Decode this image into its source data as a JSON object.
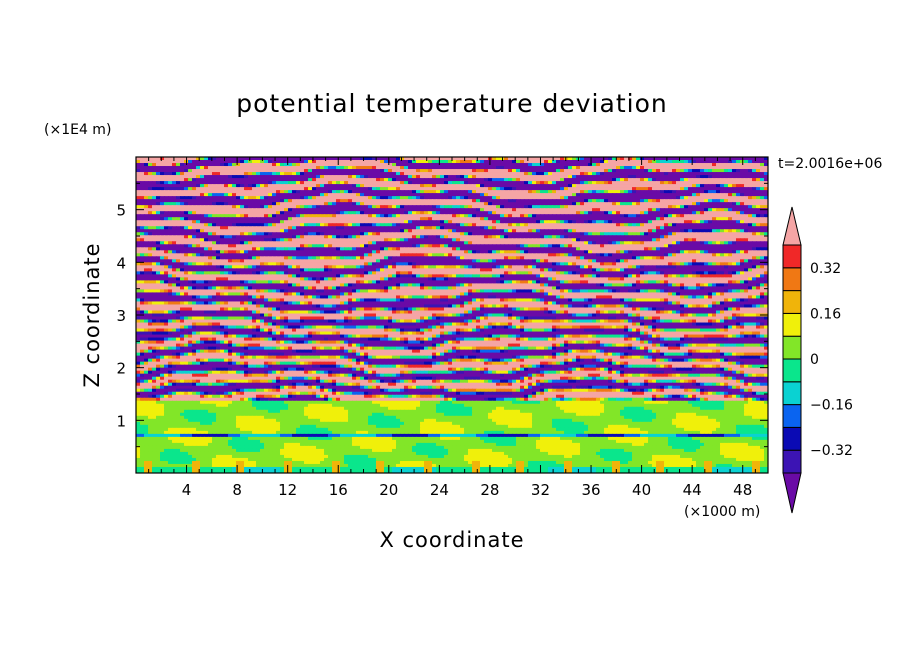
{
  "chart_data": {
    "type": "heatmap",
    "title": "potential temperature deviation",
    "xlabel": "X coordinate",
    "ylabel": "Z coordinate",
    "x_unit": "(×1000 m)",
    "y_unit": "(×1E4 m)",
    "time_label": "t=2.0016e+06",
    "xlim": [
      0,
      50
    ],
    "ylim": [
      0,
      6
    ],
    "x_ticks": [
      "4",
      "8",
      "12",
      "16",
      "20",
      "24",
      "28",
      "32",
      "36",
      "40",
      "44",
      "48"
    ],
    "x_tick_values": [
      4,
      8,
      12,
      16,
      20,
      24,
      28,
      32,
      36,
      40,
      44,
      48
    ],
    "y_ticks": [
      "1",
      "2",
      "3",
      "4",
      "5"
    ],
    "y_tick_values": [
      1,
      2,
      3,
      4,
      5
    ],
    "colorbar": {
      "levels": [
        -0.4,
        -0.32,
        -0.24,
        -0.16,
        -0.08,
        0,
        0.08,
        0.16,
        0.24,
        0.32,
        0.4
      ],
      "labels": [
        "0.32",
        "0.16",
        "0",
        "−0.16",
        "−0.32"
      ],
      "label_values": [
        0.32,
        0.16,
        0,
        -0.16,
        -0.32
      ],
      "colors": [
        "#6a0aa6",
        "#3c14b4",
        "#0a0ab4",
        "#0a64f0",
        "#0ad2d2",
        "#0ae68c",
        "#82e628",
        "#f0f00a",
        "#f0b40a",
        "#f07814",
        "#f02828",
        "#f5a5a5"
      ],
      "extend": "both"
    },
    "grid": false,
    "legend_position": "right"
  }
}
